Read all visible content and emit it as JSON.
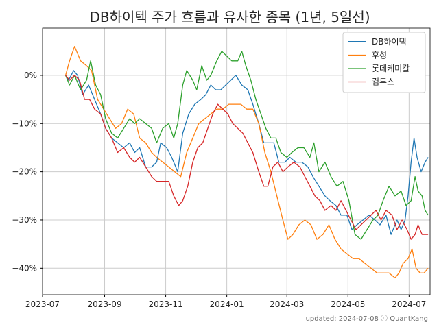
{
  "chart_data": {
    "type": "line",
    "title": "DB하이텍 주가 흐름과 유사한 종목 (1년, 5일선)",
    "xlabel": "",
    "ylabel": "",
    "x_ticks": [
      "2023-07",
      "2023-09",
      "2023-11",
      "2024-01",
      "2024-03",
      "2024-05",
      "2024-07"
    ],
    "y_ticks": [
      "0%",
      "−10%",
      "−20%",
      "−30%",
      "−40%"
    ],
    "y_tick_values": [
      0,
      -10,
      -20,
      -30,
      -40
    ],
    "xlim": [
      "2023-07-01",
      "2024-07-22"
    ],
    "ylim": [
      -45.5,
      9.8
    ],
    "grid": true,
    "legend_position": "top-right",
    "credit": "updated: 2024-07-08 ⓒ QuantKang",
    "series": [
      {
        "name": "DB하이텍",
        "color": "#1f77b4",
        "linewidth": 2,
        "points": [
          [
            "2023-07-24",
            0
          ],
          [
            "2023-07-27",
            -1
          ],
          [
            "2023-08-01",
            1
          ],
          [
            "2023-08-05",
            0
          ],
          [
            "2023-08-10",
            -4
          ],
          [
            "2023-08-16",
            -2
          ],
          [
            "2023-08-22",
            -5
          ],
          [
            "2023-08-28",
            -8
          ],
          [
            "2023-09-02",
            -11
          ],
          [
            "2023-09-08",
            -13
          ],
          [
            "2023-09-14",
            -14
          ],
          [
            "2023-09-20",
            -15
          ],
          [
            "2023-09-26",
            -14
          ],
          [
            "2023-10-01",
            -16
          ],
          [
            "2023-10-06",
            -15
          ],
          [
            "2023-10-12",
            -19
          ],
          [
            "2023-10-18",
            -19
          ],
          [
            "2023-10-23",
            -18
          ],
          [
            "2023-10-27",
            -14
          ],
          [
            "2023-11-02",
            -15
          ],
          [
            "2023-11-07",
            -17
          ],
          [
            "2023-11-13",
            -20
          ],
          [
            "2023-11-18",
            -12
          ],
          [
            "2023-11-24",
            -8
          ],
          [
            "2023-11-30",
            -6
          ],
          [
            "2023-12-06",
            -5
          ],
          [
            "2023-12-11",
            -4
          ],
          [
            "2023-12-16",
            -2
          ],
          [
            "2023-12-21",
            -3
          ],
          [
            "2023-12-26",
            -3
          ],
          [
            "2023-12-31",
            -2
          ],
          [
            "2024-01-05",
            -1
          ],
          [
            "2024-01-10",
            0
          ],
          [
            "2024-01-16",
            -2
          ],
          [
            "2024-01-22",
            -3
          ],
          [
            "2024-01-27",
            -6
          ],
          [
            "2024-02-02",
            -10
          ],
          [
            "2024-02-07",
            -14
          ],
          [
            "2024-02-12",
            -14
          ],
          [
            "2024-02-17",
            -14
          ],
          [
            "2024-02-22",
            -18
          ],
          [
            "2024-02-28",
            -18
          ],
          [
            "2024-03-04",
            -17
          ],
          [
            "2024-03-10",
            -18
          ],
          [
            "2024-03-16",
            -18
          ],
          [
            "2024-03-22",
            -19
          ],
          [
            "2024-03-27",
            -21
          ],
          [
            "2024-04-02",
            -23
          ],
          [
            "2024-04-08",
            -25
          ],
          [
            "2024-04-13",
            -26
          ],
          [
            "2024-04-19",
            -27
          ],
          [
            "2024-04-24",
            -29
          ],
          [
            "2024-04-30",
            -29
          ],
          [
            "2024-05-05",
            -32
          ],
          [
            "2024-05-10",
            -31
          ],
          [
            "2024-05-16",
            -30
          ],
          [
            "2024-05-22",
            -29
          ],
          [
            "2024-05-28",
            -30
          ],
          [
            "2024-06-02",
            -31
          ],
          [
            "2024-06-08",
            -29
          ],
          [
            "2024-06-13",
            -33
          ],
          [
            "2024-06-19",
            -30
          ],
          [
            "2024-06-23",
            -32
          ],
          [
            "2024-06-27",
            -30
          ],
          [
            "2024-06-30",
            -25
          ],
          [
            "2024-07-03",
            -18
          ],
          [
            "2024-07-06",
            -13
          ],
          [
            "2024-07-09",
            -17
          ],
          [
            "2024-07-13",
            -20
          ],
          [
            "2024-07-17",
            -18
          ],
          [
            "2024-07-20",
            -17
          ]
        ]
      },
      {
        "name": "후성",
        "color": "#ff7f0e",
        "linewidth": 1.3,
        "points": [
          [
            "2023-07-24",
            0
          ],
          [
            "2023-07-28",
            3
          ],
          [
            "2023-08-02",
            6
          ],
          [
            "2023-08-08",
            3
          ],
          [
            "2023-08-14",
            2
          ],
          [
            "2023-08-19",
            1
          ],
          [
            "2023-08-25",
            -5
          ],
          [
            "2023-08-31",
            -7
          ],
          [
            "2023-09-06",
            -9
          ],
          [
            "2023-09-12",
            -11
          ],
          [
            "2023-09-18",
            -10
          ],
          [
            "2023-09-24",
            -7
          ],
          [
            "2023-09-30",
            -8
          ],
          [
            "2023-10-06",
            -13
          ],
          [
            "2023-10-12",
            -14
          ],
          [
            "2023-10-18",
            -16
          ],
          [
            "2023-10-23",
            -17
          ],
          [
            "2023-10-29",
            -18
          ],
          [
            "2023-11-04",
            -19
          ],
          [
            "2023-11-10",
            -20
          ],
          [
            "2023-11-16",
            -21
          ],
          [
            "2023-11-22",
            -16
          ],
          [
            "2023-11-28",
            -13
          ],
          [
            "2023-12-04",
            -10
          ],
          [
            "2023-12-10",
            -9
          ],
          [
            "2023-12-16",
            -8
          ],
          [
            "2023-12-22",
            -7
          ],
          [
            "2023-12-28",
            -7
          ],
          [
            "2024-01-03",
            -6
          ],
          [
            "2024-01-09",
            -6
          ],
          [
            "2024-01-15",
            -6
          ],
          [
            "2024-01-21",
            -7
          ],
          [
            "2024-01-27",
            -7
          ],
          [
            "2024-02-02",
            -10
          ],
          [
            "2024-02-08",
            -16
          ],
          [
            "2024-02-14",
            -20
          ],
          [
            "2024-02-20",
            -25
          ],
          [
            "2024-02-26",
            -30
          ],
          [
            "2024-03-02",
            -34
          ],
          [
            "2024-03-07",
            -33
          ],
          [
            "2024-03-13",
            -31
          ],
          [
            "2024-03-19",
            -30
          ],
          [
            "2024-03-25",
            -31
          ],
          [
            "2024-03-31",
            -34
          ],
          [
            "2024-04-06",
            -33
          ],
          [
            "2024-04-12",
            -31
          ],
          [
            "2024-04-18",
            -34
          ],
          [
            "2024-04-24",
            -36
          ],
          [
            "2024-04-30",
            -37
          ],
          [
            "2024-05-06",
            -38
          ],
          [
            "2024-05-12",
            -38
          ],
          [
            "2024-05-18",
            -39
          ],
          [
            "2024-05-24",
            -40
          ],
          [
            "2024-05-30",
            -41
          ],
          [
            "2024-06-05",
            -41
          ],
          [
            "2024-06-11",
            -41
          ],
          [
            "2024-06-17",
            -42
          ],
          [
            "2024-06-21",
            -41
          ],
          [
            "2024-06-25",
            -39
          ],
          [
            "2024-06-30",
            -38
          ],
          [
            "2024-07-04",
            -36
          ],
          [
            "2024-07-08",
            -40
          ],
          [
            "2024-07-12",
            -41
          ],
          [
            "2024-07-16",
            -41
          ],
          [
            "2024-07-20",
            -40
          ]
        ]
      },
      {
        "name": "롯데케미칼",
        "color": "#2ca02c",
        "linewidth": 1.3,
        "points": [
          [
            "2023-07-24",
            0
          ],
          [
            "2023-07-28",
            -2
          ],
          [
            "2023-08-02",
            0
          ],
          [
            "2023-08-08",
            -3
          ],
          [
            "2023-08-14",
            -1
          ],
          [
            "2023-08-18",
            3
          ],
          [
            "2023-08-23",
            -2
          ],
          [
            "2023-08-28",
            -4
          ],
          [
            "2023-09-02",
            -9
          ],
          [
            "2023-09-08",
            -12
          ],
          [
            "2023-09-14",
            -13
          ],
          [
            "2023-09-20",
            -11
          ],
          [
            "2023-09-26",
            -9
          ],
          [
            "2023-10-01",
            -10
          ],
          [
            "2023-10-06",
            -9
          ],
          [
            "2023-10-12",
            -10
          ],
          [
            "2023-10-18",
            -11
          ],
          [
            "2023-10-23",
            -14
          ],
          [
            "2023-10-29",
            -11
          ],
          [
            "2023-11-04",
            -10
          ],
          [
            "2023-11-09",
            -13
          ],
          [
            "2023-11-13",
            -10
          ],
          [
            "2023-11-18",
            -2
          ],
          [
            "2023-11-22",
            1
          ],
          [
            "2023-11-28",
            -1
          ],
          [
            "2023-12-02",
            -3
          ],
          [
            "2023-12-07",
            2
          ],
          [
            "2023-12-12",
            -1
          ],
          [
            "2023-12-16",
            0
          ],
          [
            "2023-12-22",
            3
          ],
          [
            "2023-12-27",
            5
          ],
          [
            "2024-01-01",
            4
          ],
          [
            "2024-01-06",
            3
          ],
          [
            "2024-01-12",
            3
          ],
          [
            "2024-01-16",
            5
          ],
          [
            "2024-01-20",
            2
          ],
          [
            "2024-01-25",
            -1
          ],
          [
            "2024-01-30",
            -5
          ],
          [
            "2024-02-04",
            -8
          ],
          [
            "2024-02-09",
            -11
          ],
          [
            "2024-02-14",
            -13
          ],
          [
            "2024-02-19",
            -13
          ],
          [
            "2024-02-24",
            -16
          ],
          [
            "2024-03-01",
            -17
          ],
          [
            "2024-03-06",
            -16
          ],
          [
            "2024-03-12",
            -15
          ],
          [
            "2024-03-18",
            -15
          ],
          [
            "2024-03-24",
            -17
          ],
          [
            "2024-03-28",
            -14
          ],
          [
            "2024-04-02",
            -20
          ],
          [
            "2024-04-08",
            -18
          ],
          [
            "2024-04-14",
            -21
          ],
          [
            "2024-04-20",
            -23
          ],
          [
            "2024-04-26",
            -22
          ],
          [
            "2024-05-02",
            -26
          ],
          [
            "2024-05-08",
            -33
          ],
          [
            "2024-05-14",
            -34
          ],
          [
            "2024-05-20",
            -32
          ],
          [
            "2024-05-26",
            -30
          ],
          [
            "2024-05-31",
            -29
          ],
          [
            "2024-06-05",
            -26
          ],
          [
            "2024-06-11",
            -23
          ],
          [
            "2024-06-17",
            -25
          ],
          [
            "2024-06-23",
            -24
          ],
          [
            "2024-06-28",
            -27
          ],
          [
            "2024-07-03",
            -26
          ],
          [
            "2024-07-07",
            -21
          ],
          [
            "2024-07-10",
            -24
          ],
          [
            "2024-07-14",
            -25
          ],
          [
            "2024-07-17",
            -28
          ],
          [
            "2024-07-20",
            -29
          ]
        ]
      },
      {
        "name": "컴투스",
        "color": "#d62728",
        "linewidth": 1.3,
        "points": [
          [
            "2023-07-24",
            0
          ],
          [
            "2023-07-28",
            -1
          ],
          [
            "2023-08-02",
            0
          ],
          [
            "2023-08-07",
            -1
          ],
          [
            "2023-08-12",
            -5
          ],
          [
            "2023-08-17",
            -5
          ],
          [
            "2023-08-22",
            -7
          ],
          [
            "2023-08-28",
            -8
          ],
          [
            "2023-09-02",
            -11
          ],
          [
            "2023-09-08",
            -13
          ],
          [
            "2023-09-14",
            -16
          ],
          [
            "2023-09-20",
            -15
          ],
          [
            "2023-09-26",
            -17
          ],
          [
            "2023-10-01",
            -18
          ],
          [
            "2023-10-06",
            -17
          ],
          [
            "2023-10-12",
            -19
          ],
          [
            "2023-10-18",
            -21
          ],
          [
            "2023-10-23",
            -22
          ],
          [
            "2023-10-29",
            -22
          ],
          [
            "2023-11-04",
            -22
          ],
          [
            "2023-11-09",
            -25
          ],
          [
            "2023-11-14",
            -27
          ],
          [
            "2023-11-18",
            -26
          ],
          [
            "2023-11-23",
            -23
          ],
          [
            "2023-11-28",
            -18
          ],
          [
            "2023-12-03",
            -15
          ],
          [
            "2023-12-08",
            -14
          ],
          [
            "2023-12-13",
            -11
          ],
          [
            "2023-12-18",
            -8
          ],
          [
            "2023-12-23",
            -6
          ],
          [
            "2023-12-28",
            -7
          ],
          [
            "2024-01-02",
            -8
          ],
          [
            "2024-01-07",
            -10
          ],
          [
            "2024-01-12",
            -11
          ],
          [
            "2024-01-17",
            -12
          ],
          [
            "2024-01-22",
            -14
          ],
          [
            "2024-01-27",
            -16
          ],
          [
            "2024-02-02",
            -20
          ],
          [
            "2024-02-07",
            -23
          ],
          [
            "2024-02-11",
            -23
          ],
          [
            "2024-02-16",
            -19
          ],
          [
            "2024-02-21",
            -18
          ],
          [
            "2024-02-26",
            -20
          ],
          [
            "2024-03-02",
            -19
          ],
          [
            "2024-03-08",
            -18
          ],
          [
            "2024-03-14",
            -19
          ],
          [
            "2024-03-19",
            -21
          ],
          [
            "2024-03-24",
            -23
          ],
          [
            "2024-03-29",
            -25
          ],
          [
            "2024-04-03",
            -26
          ],
          [
            "2024-04-08",
            -28
          ],
          [
            "2024-04-14",
            -27
          ],
          [
            "2024-04-19",
            -28
          ],
          [
            "2024-04-24",
            -26
          ],
          [
            "2024-04-29",
            -28
          ],
          [
            "2024-05-04",
            -30
          ],
          [
            "2024-05-09",
            -32
          ],
          [
            "2024-05-14",
            -31
          ],
          [
            "2024-05-19",
            -30
          ],
          [
            "2024-05-24",
            -29
          ],
          [
            "2024-05-29",
            -28
          ],
          [
            "2024-06-03",
            -30
          ],
          [
            "2024-06-08",
            -28
          ],
          [
            "2024-06-14",
            -29
          ],
          [
            "2024-06-19",
            -32
          ],
          [
            "2024-06-24",
            -30
          ],
          [
            "2024-06-29",
            -32
          ],
          [
            "2024-07-03",
            -34
          ],
          [
            "2024-07-07",
            -33
          ],
          [
            "2024-07-10",
            -31
          ],
          [
            "2024-07-14",
            -33
          ],
          [
            "2024-07-20",
            -33
          ]
        ]
      }
    ]
  }
}
